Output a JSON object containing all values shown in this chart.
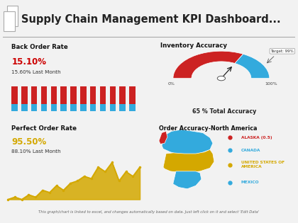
{
  "title": "Supply Chain Management KPI Dashboard...",
  "bg_color": "#f2f2f2",
  "backorder_title": "Back Order Rate",
  "backorder_value": "15.10%",
  "backorder_last": "15.60% Last Month",
  "backorder_value_color": "#cc0000",
  "backorder_bar_red": "#cc2222",
  "backorder_bar_blue": "#33aadd",
  "backorder_n_bars": 13,
  "inventory_title": "Inventory Accuracy",
  "inventory_value": 65,
  "inventory_label": "65 % Total Accuracy",
  "inventory_target": "Target: 99%",
  "inventory_red_color": "#cc2222",
  "inventory_blue_color": "#33aadd",
  "perfect_title": "Perfect Order Rate",
  "perfect_value": "95.50%",
  "perfect_last": "88.10% Last Month",
  "perfect_value_color": "#d4a800",
  "perfect_line_color": "#d4a800",
  "perfect_fill_color": "#d4a800",
  "perfect_y": [
    1,
    1.5,
    1,
    2,
    1.5,
    3,
    2.5,
    4,
    3,
    4.5,
    5,
    6,
    5.5,
    8,
    7,
    9,
    5,
    7,
    6,
    8
  ],
  "map_title": "Order Accuracy-North America",
  "map_legend": [
    {
      "label": "ALASKA (0.5)",
      "color": "#cc2222"
    },
    {
      "label": "CANADA",
      "color": "#33aadd"
    },
    {
      "label": "UNITED STATES OF AMERICA",
      "color": "#d4a800"
    },
    {
      "label": "MEXICO",
      "color": "#33aadd"
    }
  ],
  "footer_text": "This graph/chart is linked to excel, and changes automatically based on data. Just left click on it and select 'Edit Data'",
  "panel_edge": "#cccccc",
  "panel_bg": "#ffffff",
  "title_bg": "#ffffff"
}
